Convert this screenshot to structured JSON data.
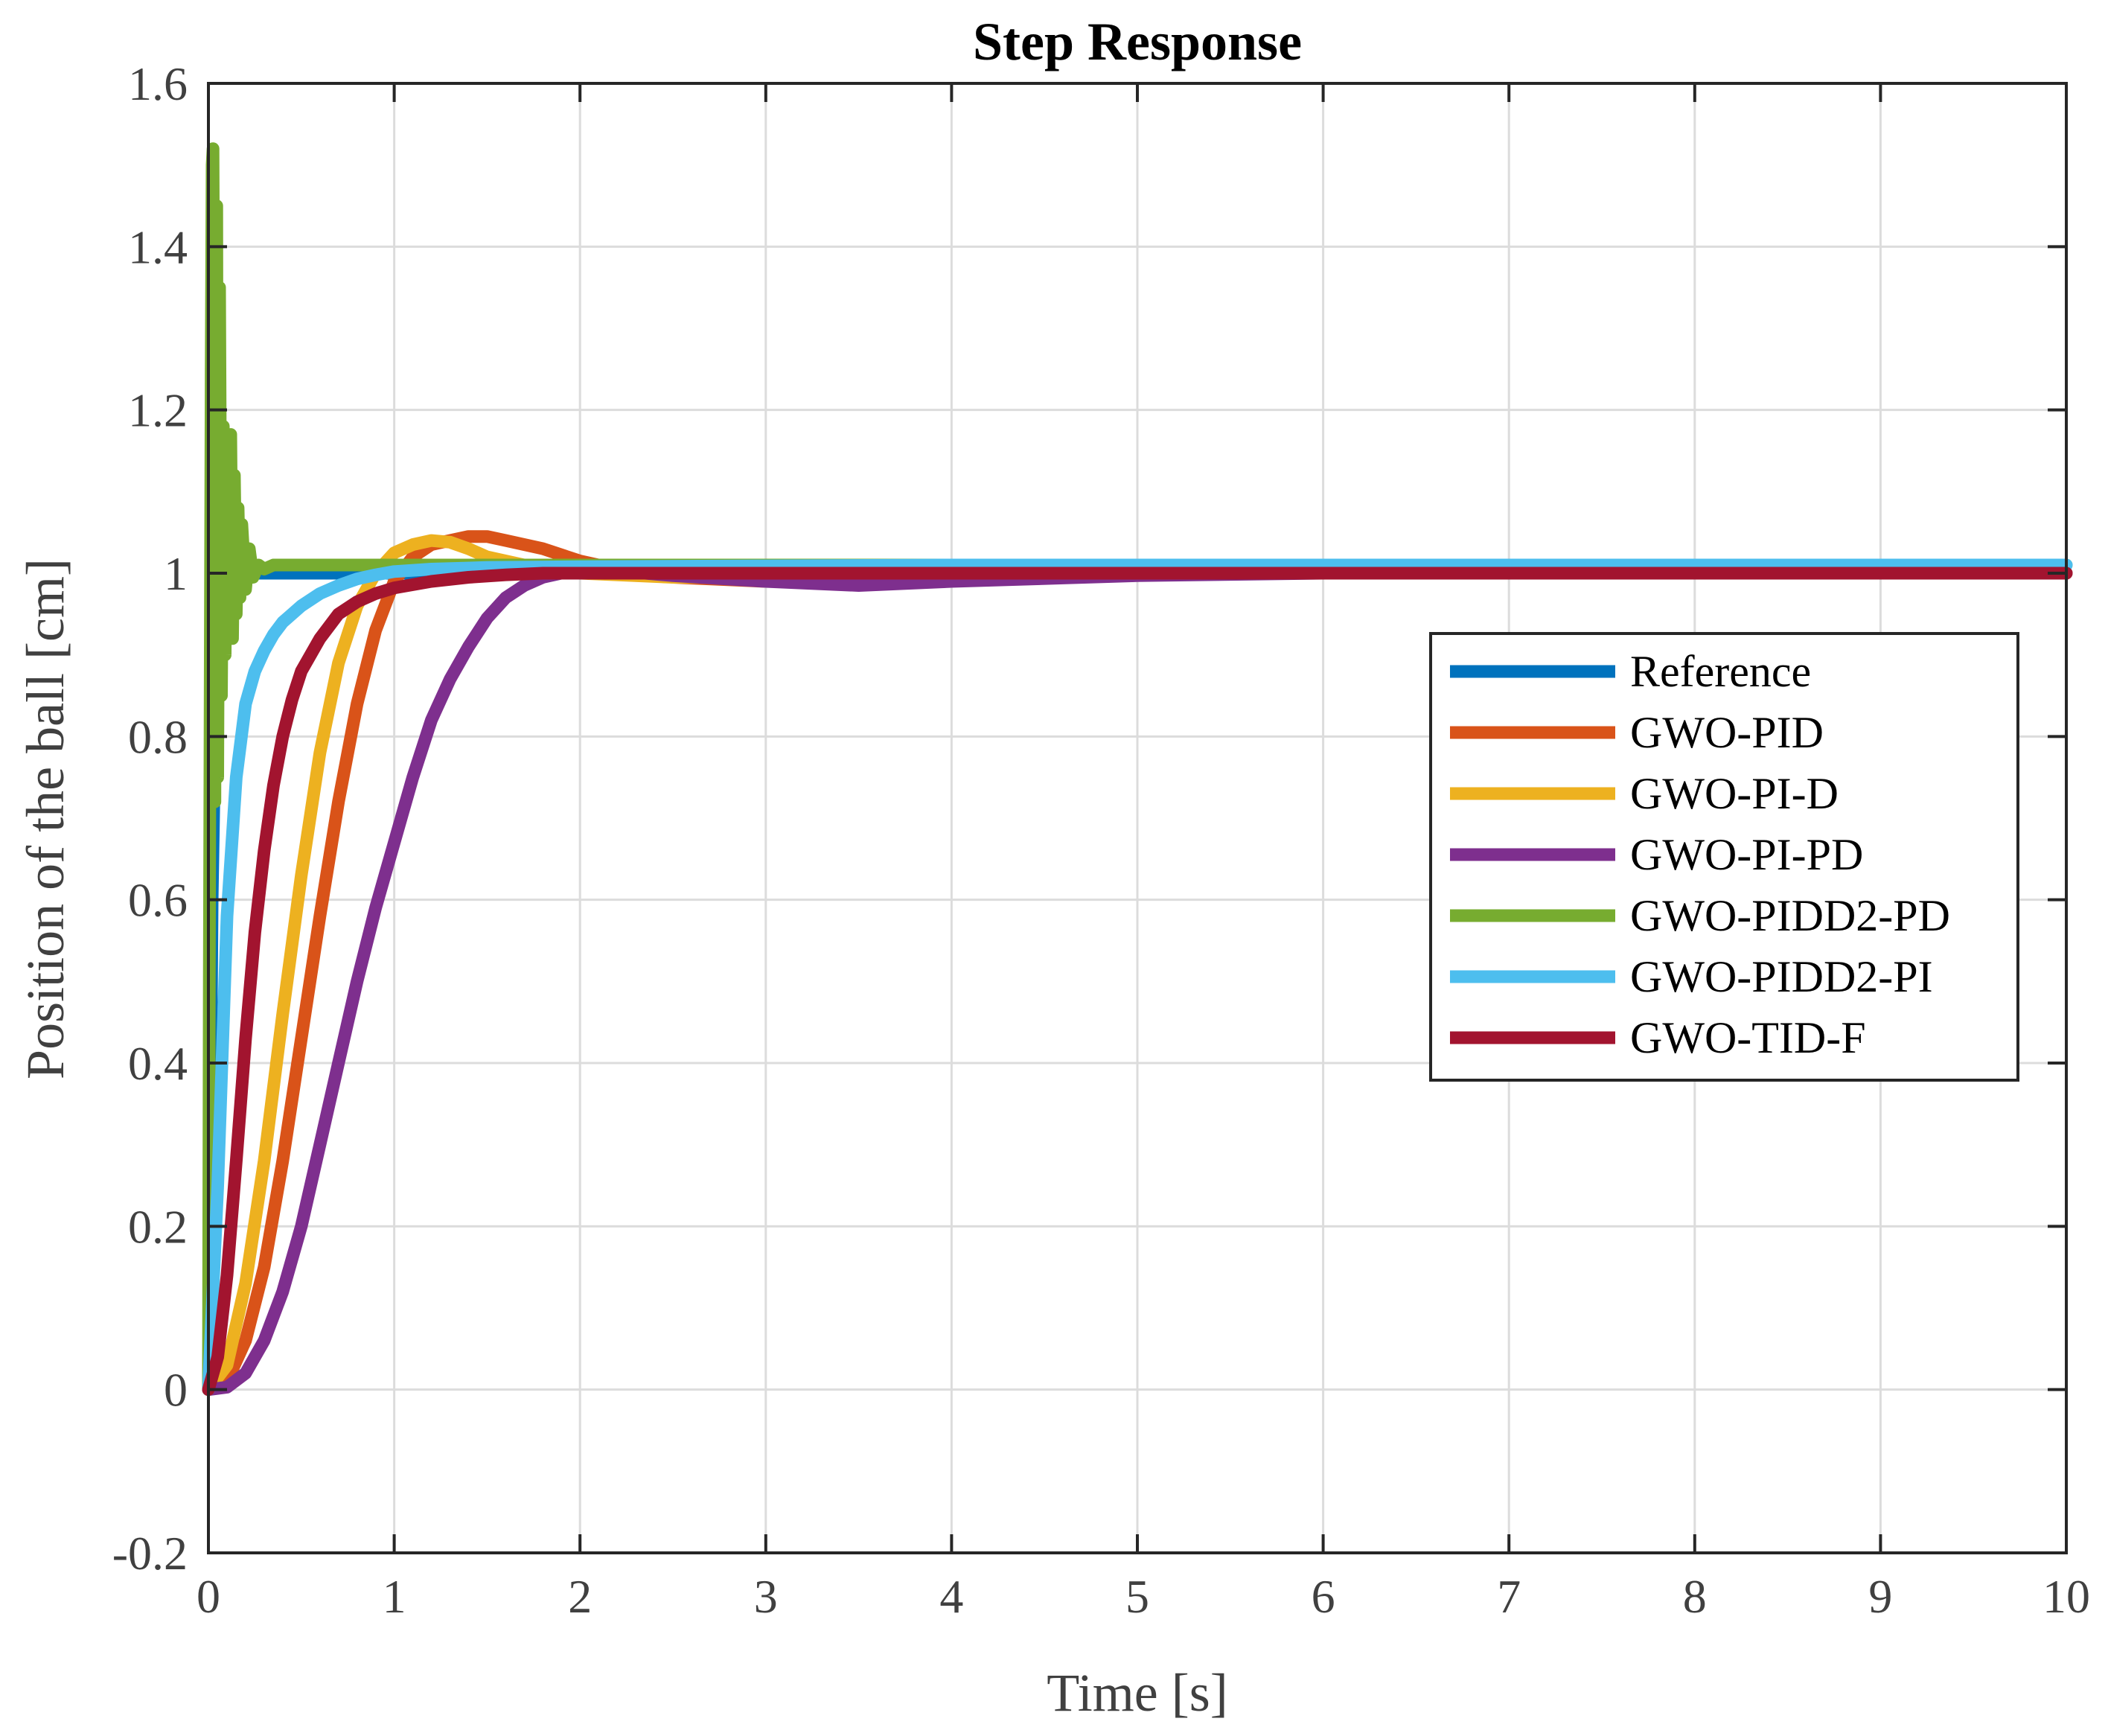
{
  "chart_data": {
    "type": "line",
    "title": "Step Response",
    "xlabel": "Time [s]",
    "ylabel": "Position of the ball [cm]",
    "xlim": [
      0,
      10
    ],
    "ylim": [
      -0.2,
      1.6
    ],
    "xticks": [
      0,
      1,
      2,
      3,
      4,
      5,
      6,
      7,
      8,
      9,
      10
    ],
    "xtick_labels": [
      "0",
      "1",
      "2",
      "3",
      "4",
      "5",
      "6",
      "7",
      "8",
      "9",
      "10"
    ],
    "yticks": [
      -0.2,
      0,
      0.2,
      0.4,
      0.6,
      0.8,
      1,
      1.2,
      1.4,
      1.6
    ],
    "ytick_labels": [
      "-0.2",
      "0",
      "0.2",
      "0.4",
      "0.6",
      "0.8",
      "1",
      "1.2",
      "1.4",
      "1.6"
    ],
    "grid": true,
    "legend_position": "right",
    "series": [
      {
        "name": "Reference",
        "color": "#0072BD",
        "x": [
          0,
          0.02,
          0.05,
          0.08,
          0.1,
          0.15,
          0.2,
          0.3,
          0.5,
          1,
          2,
          3,
          4,
          5,
          6,
          7,
          8,
          9,
          10
        ],
        "y": [
          0,
          0.6,
          1.0,
          1.0,
          1.0,
          1.0,
          1.0,
          1.0,
          1.0,
          1.0,
          1.0,
          1.0,
          1.0,
          1.0,
          1.0,
          1.0,
          1.0,
          1.0,
          1.0
        ]
      },
      {
        "name": "GWO-PID",
        "color": "#D95319",
        "x": [
          0,
          0.1,
          0.2,
          0.3,
          0.4,
          0.5,
          0.6,
          0.7,
          0.8,
          0.9,
          1.0,
          1.1,
          1.2,
          1.3,
          1.4,
          1.5,
          1.6,
          1.8,
          2.0,
          2.2,
          2.5,
          3.0,
          3.5,
          4.0,
          5.0,
          6.0,
          8.0,
          10.0
        ],
        "y": [
          0,
          0.01,
          0.06,
          0.15,
          0.28,
          0.43,
          0.58,
          0.72,
          0.84,
          0.93,
          0.99,
          1.02,
          1.035,
          1.04,
          1.045,
          1.045,
          1.04,
          1.03,
          1.015,
          1.005,
          0.995,
          0.99,
          0.99,
          0.995,
          1.0,
          1.0,
          1.0,
          1.0
        ]
      },
      {
        "name": "GWO-PI-D",
        "color": "#EDB120",
        "x": [
          0,
          0.1,
          0.2,
          0.3,
          0.4,
          0.5,
          0.6,
          0.7,
          0.8,
          0.9,
          1.0,
          1.1,
          1.2,
          1.3,
          1.4,
          1.5,
          1.7,
          2.0,
          2.5,
          3.0,
          4.0,
          5.0,
          7.0,
          10.0
        ],
        "y": [
          0,
          0.03,
          0.13,
          0.28,
          0.46,
          0.63,
          0.78,
          0.89,
          0.96,
          1.0,
          1.025,
          1.035,
          1.04,
          1.038,
          1.03,
          1.02,
          1.01,
          1.0,
          0.995,
          0.995,
          1.0,
          1.0,
          1.0,
          1.0
        ]
      },
      {
        "name": "GWO-PI-PD",
        "color": "#7E2F8E",
        "x": [
          0,
          0.1,
          0.2,
          0.3,
          0.4,
          0.5,
          0.6,
          0.7,
          0.8,
          0.9,
          1.0,
          1.1,
          1.2,
          1.3,
          1.4,
          1.5,
          1.6,
          1.7,
          1.8,
          1.9,
          2.0,
          2.2,
          2.5,
          3.0,
          3.5,
          4.0,
          5.0,
          6.0,
          8.0,
          10.0
        ],
        "y": [
          0,
          0.003,
          0.02,
          0.06,
          0.12,
          0.2,
          0.3,
          0.4,
          0.5,
          0.59,
          0.67,
          0.75,
          0.82,
          0.87,
          0.91,
          0.945,
          0.97,
          0.985,
          0.995,
          1.0,
          1.003,
          1.003,
          0.997,
          0.99,
          0.985,
          0.99,
          0.997,
          1.0,
          1.0,
          1.0
        ]
      },
      {
        "name": "GWO-PIDD2-PD",
        "color": "#77AC30",
        "x": [
          0,
          0.005,
          0.01,
          0.015,
          0.02,
          0.025,
          0.03,
          0.035,
          0.04,
          0.045,
          0.05,
          0.06,
          0.07,
          0.08,
          0.09,
          0.1,
          0.11,
          0.12,
          0.13,
          0.14,
          0.15,
          0.16,
          0.17,
          0.18,
          0.2,
          0.22,
          0.24,
          0.27,
          0.3,
          0.35,
          0.4,
          0.5,
          1.0,
          2.0,
          4.0,
          6.0,
          8.0,
          10.0
        ],
        "y": [
          0,
          0.5,
          0.9,
          1.25,
          1.5,
          1.52,
          1.2,
          0.72,
          1.3,
          1.45,
          0.75,
          1.35,
          0.85,
          1.18,
          0.9,
          1.15,
          0.95,
          1.17,
          0.92,
          1.12,
          0.95,
          1.08,
          0.97,
          1.06,
          0.98,
          1.03,
          0.995,
          1.01,
          1.005,
          1.01,
          1.01,
          1.01,
          1.01,
          1.01,
          1.01,
          1.01,
          1.01,
          1.01
        ]
      },
      {
        "name": "GWO-PIDD2-PI",
        "color": "#4DBEEE",
        "x": [
          0,
          0.05,
          0.1,
          0.15,
          0.2,
          0.25,
          0.3,
          0.35,
          0.4,
          0.5,
          0.6,
          0.7,
          0.8,
          0.9,
          1.0,
          1.2,
          1.5,
          2.0,
          3.0,
          4.0,
          5.0,
          6.0,
          7.0,
          8.0,
          9.0,
          10.0
        ],
        "y": [
          0,
          0.25,
          0.58,
          0.75,
          0.84,
          0.88,
          0.905,
          0.925,
          0.94,
          0.96,
          0.975,
          0.985,
          0.993,
          0.998,
          1.002,
          1.005,
          1.007,
          1.008,
          1.009,
          1.01,
          1.01,
          1.01,
          1.01,
          1.01,
          1.01,
          1.01
        ]
      },
      {
        "name": "GWO-TID-F",
        "color": "#A2142F",
        "x": [
          0,
          0.05,
          0.1,
          0.15,
          0.2,
          0.25,
          0.3,
          0.35,
          0.4,
          0.45,
          0.5,
          0.6,
          0.7,
          0.8,
          0.9,
          1.0,
          1.2,
          1.4,
          1.6,
          1.8,
          2.0,
          2.5,
          3.0,
          4.0,
          6.0,
          8.0,
          10.0
        ],
        "y": [
          0,
          0.04,
          0.14,
          0.28,
          0.43,
          0.56,
          0.66,
          0.74,
          0.8,
          0.845,
          0.88,
          0.92,
          0.95,
          0.965,
          0.975,
          0.982,
          0.99,
          0.995,
          0.998,
          1.0,
          1.0,
          1.0,
          1.0,
          1.0,
          1.0,
          1.0,
          1.0
        ]
      }
    ]
  }
}
